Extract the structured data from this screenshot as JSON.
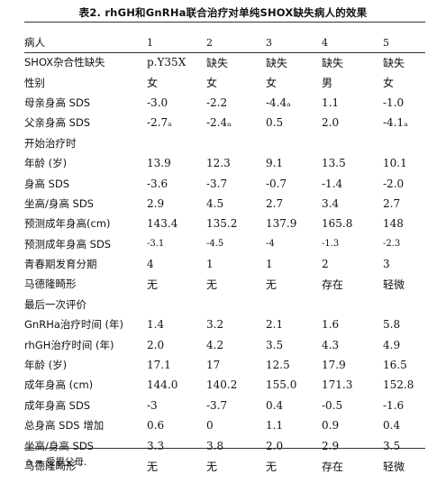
{
  "title": "表2. rhGH和GnRHa联合治疗对单纯SHOX缺失病人的效果",
  "header": {
    "label": "病人",
    "cols": [
      "1",
      "2",
      "3",
      "4",
      "5"
    ]
  },
  "rows": [
    {
      "label": "SHOX杂合性缺失",
      "cells": [
        "p.Y35X",
        "缺失",
        "缺失",
        "缺失",
        "缺失"
      ]
    },
    {
      "label": "性别",
      "cells": [
        "女",
        "女",
        "女",
        "男",
        "女"
      ]
    },
    {
      "label": "母亲身高 SDS",
      "cells": [
        "-3.0",
        "-2.2",
        "-4.4ₐ",
        "1.1",
        "-1.0"
      ]
    },
    {
      "label": "父亲身高 SDS",
      "cells": [
        "-2.7ₐ",
        "-2.4ₐ",
        "0.5",
        "2.0",
        "-4.1ₐ"
      ]
    },
    {
      "label": "开始治疗时",
      "cells": [
        "",
        "",
        "",
        "",
        ""
      ]
    },
    {
      "label": "年龄 (岁)",
      "cells": [
        "13.9",
        "12.3",
        "9.1",
        "13.5",
        "10.1"
      ]
    },
    {
      "label": "身高 SDS",
      "cells": [
        "-3.6",
        "-3.7",
        "-0.7",
        "-1.4",
        "-2.0"
      ]
    },
    {
      "label": "坐高/身高 SDS",
      "cells": [
        "2.9",
        "4.5",
        "2.7",
        "3.4",
        "2.7"
      ]
    },
    {
      "label": "预测成年身高(cm)",
      "cells": [
        "143.4",
        "135.2",
        "137.9",
        "165.8",
        "148"
      ]
    },
    {
      "label": "预测成年身高 SDS",
      "cells": [
        "-3.1",
        "-4.5",
        "-4",
        "-1.3",
        "-2.3"
      ]
    },
    {
      "label": "青春期发育分期",
      "cells": [
        "4",
        "1",
        "1",
        "2",
        "3"
      ]
    },
    {
      "label": "马德隆畸形",
      "cells": [
        "无",
        "无",
        "无",
        "存在",
        "轻微"
      ]
    },
    {
      "label": "最后一次评价",
      "cells": [
        "",
        "",
        "",
        "",
        ""
      ]
    },
    {
      "label": "GnRHa治疗时间 (年)",
      "cells": [
        "1.4",
        "3.2",
        "2.1",
        "1.6",
        "5.8"
      ]
    },
    {
      "label": "rhGH治疗时间 (年)",
      "cells": [
        "2.0",
        "4.2",
        "3.5",
        "4.3",
        "4.9"
      ]
    },
    {
      "label": "年龄 (岁)",
      "cells": [
        "17.1",
        "17",
        "12.5",
        "17.9",
        "16.5"
      ]
    },
    {
      "label": "成年身高 (cm)",
      "cells": [
        "144.0",
        "140.2",
        "155.0",
        "171.3",
        "152.8"
      ]
    },
    {
      "label": "成年身高 SDS",
      "cells": [
        "-3",
        "-3.7",
        "0.4",
        "-0.5",
        "-1.6"
      ]
    },
    {
      "label": "总身高 SDS 增加",
      "cells": [
        "0.6",
        "0",
        "1.1",
        "0.9",
        "0.4"
      ]
    },
    {
      "label": "坐高/身高 SDS",
      "cells": [
        "3.3",
        "3.8",
        "2.0",
        "2.9",
        "3.5"
      ]
    },
    {
      "label": "马德隆畸形",
      "cells": [
        "无",
        "无",
        "无",
        "存在",
        "轻微"
      ]
    }
  ],
  "footnote": "a = 受累父母."
}
